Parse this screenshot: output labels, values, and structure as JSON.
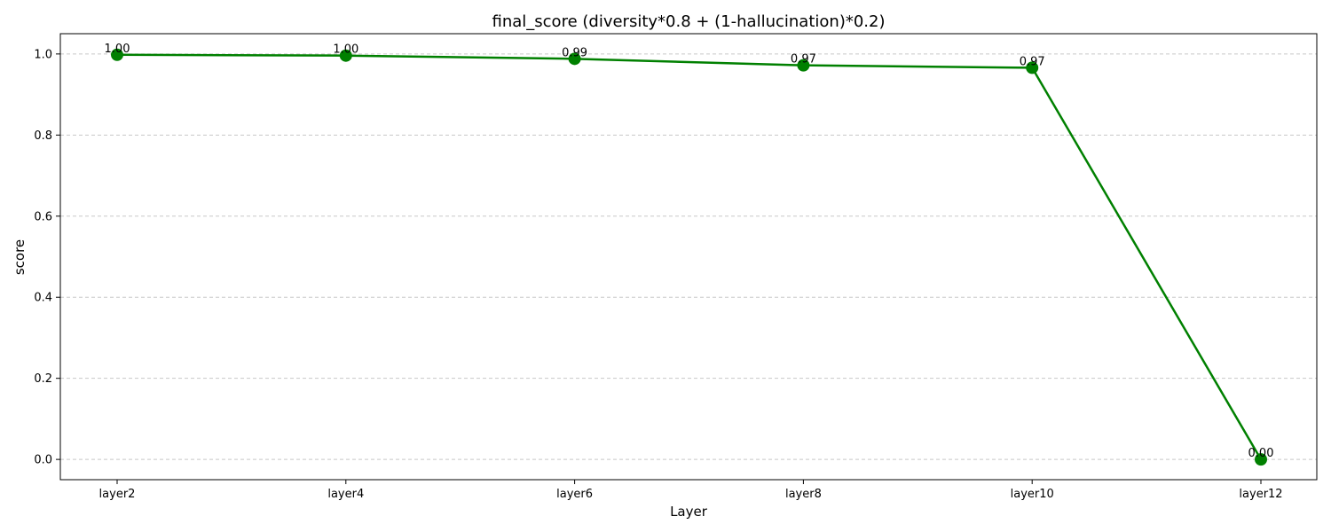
{
  "chart_data": {
    "type": "line",
    "title": "final_score (diversity*0.8 + (1-hallucination)*0.2)",
    "xlabel": "Layer",
    "ylabel": "score",
    "categories": [
      "layer2",
      "layer4",
      "layer6",
      "layer8",
      "layer10",
      "layer12"
    ],
    "series": [
      {
        "values": [
          0.998,
          0.996,
          0.988,
          0.972,
          0.966,
          0.0
        ],
        "labels": [
          "1.00",
          "1.00",
          "0.99",
          "0.97",
          "0.97",
          "0.00"
        ],
        "color": "#008000"
      }
    ],
    "ylim": [
      -0.05,
      1.05
    ],
    "yticks": [
      0.0,
      0.2,
      0.4,
      0.6,
      0.8,
      1.0
    ],
    "ytick_labels": [
      "0.0",
      "0.2",
      "0.4",
      "0.6",
      "0.8",
      "1.0"
    ],
    "grid": "y-dashed",
    "legend": "none"
  }
}
